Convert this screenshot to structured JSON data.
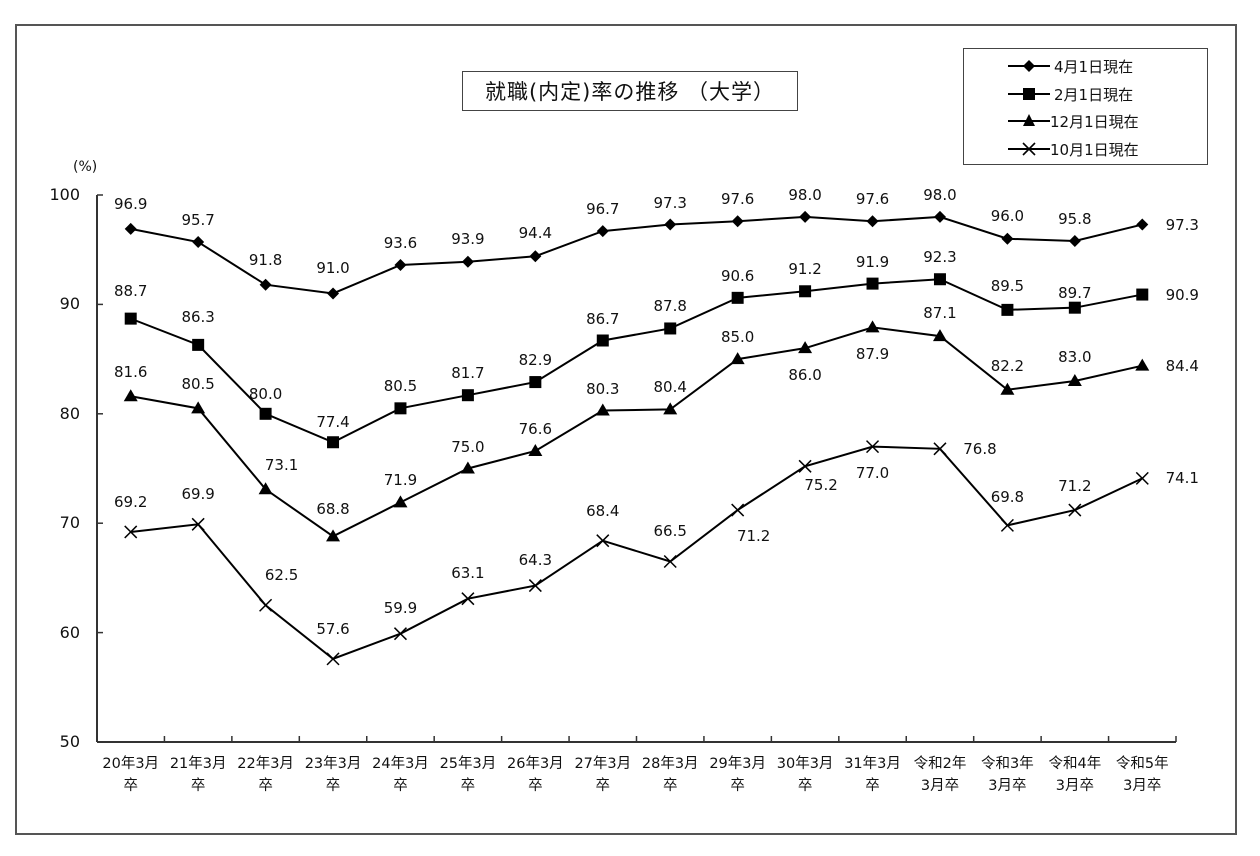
{
  "chart_data": {
    "type": "line",
    "title": "就職(内定)率の推移 （大学）",
    "ylabel": "(%)",
    "xlabel": "",
    "ylim": [
      50,
      100
    ],
    "yticks": [
      "100",
      "90",
      "80",
      "70",
      "60",
      "50"
    ],
    "grid": false,
    "legend_position": "top-right",
    "categories": [
      [
        "20年3月",
        "卒"
      ],
      [
        "21年3月",
        "卒"
      ],
      [
        "22年3月",
        "卒"
      ],
      [
        "23年3月",
        "卒"
      ],
      [
        "24年3月",
        "卒"
      ],
      [
        "25年3月",
        "卒"
      ],
      [
        "26年3月",
        "卒"
      ],
      [
        "27年3月",
        "卒"
      ],
      [
        "28年3月",
        "卒"
      ],
      [
        "29年3月",
        "卒"
      ],
      [
        "30年3月",
        "卒"
      ],
      [
        "31年3月",
        "卒"
      ],
      [
        "令和2年",
        "3月卒"
      ],
      [
        "令和3年",
        "3月卒"
      ],
      [
        "令和4年",
        "3月卒"
      ],
      [
        "令和5年",
        "3月卒"
      ]
    ],
    "series": [
      {
        "name": "4月1日現在",
        "marker": "diamond",
        "values": [
          96.9,
          95.7,
          91.8,
          91.0,
          93.6,
          93.9,
          94.4,
          96.7,
          97.3,
          97.6,
          98.0,
          97.6,
          98.0,
          96.0,
          95.8,
          97.3
        ]
      },
      {
        "name": "2月1日現在",
        "marker": "square",
        "values": [
          88.7,
          86.3,
          80.0,
          77.4,
          80.5,
          81.7,
          82.9,
          86.7,
          87.8,
          90.6,
          91.2,
          91.9,
          92.3,
          89.5,
          89.7,
          90.9
        ]
      },
      {
        "name": "12月1日現在",
        "marker": "triangle",
        "values": [
          81.6,
          80.5,
          73.1,
          68.8,
          71.9,
          75.0,
          76.6,
          80.3,
          80.4,
          85.0,
          86.0,
          87.9,
          87.1,
          82.2,
          83.0,
          84.4
        ]
      },
      {
        "name": "10月1日現在",
        "marker": "x",
        "values": [
          69.2,
          69.9,
          62.5,
          57.6,
          59.9,
          63.1,
          64.3,
          68.4,
          66.5,
          71.2,
          75.2,
          77.0,
          76.8,
          69.8,
          71.2,
          74.1
        ]
      }
    ]
  },
  "colors": {
    "line": "#000000",
    "axis": "#333333",
    "frame": "#555555"
  }
}
